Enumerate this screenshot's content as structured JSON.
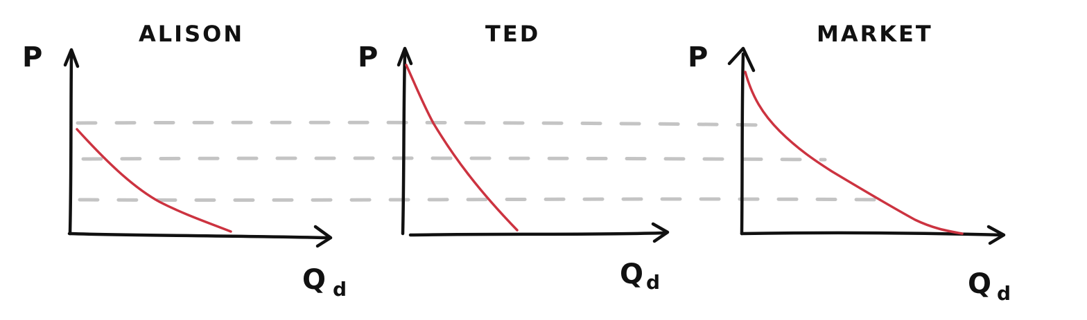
{
  "panels": [
    {
      "title": "ALISON",
      "y_label": "P",
      "x_label": "Q",
      "x_label_sub": "d"
    },
    {
      "title": "TED",
      "y_label": "P",
      "x_label": "Q",
      "x_label_sub": "d"
    },
    {
      "title": "MARKET",
      "y_label": "P",
      "x_label": "Q",
      "x_label_sub": "d"
    }
  ],
  "colors": {
    "axis": "#111111",
    "demand_curve": "#cc3340",
    "price_guides": "#c4c4c4",
    "background": "#ffffff"
  },
  "guide_lines": {
    "count": 3,
    "style": "dashed"
  }
}
